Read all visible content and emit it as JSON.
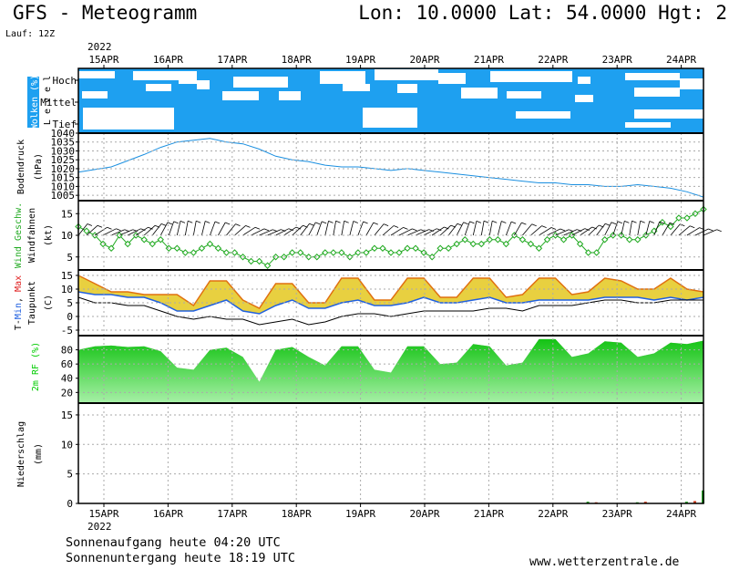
{
  "header": {
    "title": "GFS - Meteogramm",
    "lon_label": "Lon:",
    "lon": "10.0000",
    "lat_label": "Lat:",
    "lat": "54.0000",
    "hgt_label": "Hgt:",
    "hgt": "2",
    "run": "Lauf: 12Z"
  },
  "footer": {
    "sunrise": "Sonnenaufgang heute 04:20 UTC",
    "sunset": "Sonnenuntergang heute 18:19 UTC",
    "credit": "www.wetterzentrale.de"
  },
  "colors": {
    "cloud": "#1ea0f0",
    "pressure": "#1a8fe0",
    "wind": "#22aa22",
    "temp_max": "#e02020",
    "temp_min": "#2060e0",
    "rh": "#00cc00",
    "grid": "#aaaaaa"
  },
  "chart_data": {
    "type": "meteogram",
    "year": "2022",
    "x_start": "2022-04-15T00:00",
    "x_end": "2022-04-24T12:00",
    "date_ticks": [
      "15APR",
      "16APR",
      "17APR",
      "18APR",
      "19APR",
      "20APR",
      "21APR",
      "22APR",
      "23APR",
      "24APR"
    ],
    "panels": [
      {
        "id": "clouds",
        "type": "heatmap",
        "ylabel": "Wolken (%)",
        "ylabel_side": "L e v e l",
        "levels": [
          "Hoch",
          "Mittel",
          "Tief"
        ]
      },
      {
        "id": "pressure",
        "type": "line",
        "ylabel": "Bodendruck",
        "unit": "(hPa)",
        "ylim": [
          1002,
          1040
        ],
        "yticks": [
          1005,
          1010,
          1015,
          1020,
          1025,
          1030,
          1035,
          1040
        ],
        "series": [
          {
            "x": [
              0,
              12,
              24,
              30,
              36,
              42,
              48,
              54,
              60,
              66,
              72,
              78,
              84,
              90,
              96,
              102,
              108,
              114,
              120,
              126,
              132,
              138,
              144,
              150,
              156,
              162,
              168,
              174,
              180,
              186,
              192,
              198,
              204,
              210,
              216,
              222,
              228
            ],
            "values": [
              1018,
              1021,
              1028,
              1032,
              1035,
              1036,
              1037,
              1035,
              1034,
              1031,
              1027,
              1025,
              1024,
              1022,
              1021,
              1021,
              1020,
              1019,
              1020,
              1019,
              1018,
              1017,
              1016,
              1015,
              1014,
              1013,
              1012,
              1012,
              1011,
              1011,
              1010,
              1010,
              1011,
              1010,
              1009,
              1007,
              1004
            ]
          }
        ]
      },
      {
        "id": "wind",
        "type": "line",
        "ylabel": "Wind Geschw.",
        "ylabel2": "Windfahnen",
        "unit": "(kt)",
        "ylim": [
          2,
          18
        ],
        "yticks": [
          5,
          10,
          15
        ],
        "series": [
          {
            "name": "Wind Geschw.",
            "x": [
              0,
              3,
              6,
              9,
              12,
              15,
              18,
              21,
              24,
              27,
              30,
              33,
              36,
              39,
              42,
              45,
              48,
              51,
              54,
              57,
              60,
              63,
              66,
              69,
              72,
              75,
              78,
              81,
              84,
              87,
              90,
              93,
              96,
              99,
              102,
              105,
              108,
              111,
              114,
              117,
              120,
              123,
              126,
              129,
              132,
              135,
              138,
              141,
              144,
              147,
              150,
              153,
              156,
              159,
              162,
              165,
              168,
              171,
              174,
              177,
              180,
              183,
              186,
              189,
              192,
              195,
              198,
              201,
              204,
              207,
              210,
              213,
              216,
              219,
              222,
              225,
              228
            ],
            "values": [
              12,
              11,
              10,
              8,
              7,
              10,
              8,
              10,
              9,
              8,
              9,
              7,
              7,
              6,
              6,
              7,
              8,
              7,
              6,
              6,
              5,
              4,
              4,
              3,
              5,
              5,
              6,
              6,
              5,
              5,
              6,
              6,
              6,
              5,
              6,
              6,
              7,
              7,
              6,
              6,
              7,
              7,
              6,
              5,
              7,
              7,
              8,
              9,
              8,
              8,
              9,
              9,
              8,
              10,
              9,
              8,
              7,
              9,
              10,
              9,
              10,
              8,
              6,
              6,
              9,
              10,
              10,
              9,
              9,
              10,
              11,
              13,
              12,
              14,
              14,
              15,
              16
            ]
          }
        ]
      },
      {
        "id": "temperature",
        "type": "area",
        "ylabel": "T-Min, Max",
        "ylabel2": "Taupunkt",
        "unit": "(C)",
        "ylim": [
          -7,
          17
        ],
        "yticks": [
          -5,
          0,
          5,
          10,
          15
        ],
        "series": [
          {
            "name": "Max",
            "x": [
              0,
              6,
              12,
              18,
              24,
              30,
              36,
              42,
              48,
              54,
              60,
              66,
              72,
              78,
              84,
              90,
              96,
              102,
              108,
              114,
              120,
              126,
              132,
              138,
              144,
              150,
              156,
              162,
              168,
              174,
              180,
              186,
              192,
              198,
              204,
              210,
              216,
              222,
              228
            ],
            "values": [
              15,
              12,
              9,
              9,
              8,
              8,
              8,
              4,
              13,
              13,
              6,
              3,
              12,
              12,
              5,
              5,
              14,
              14,
              6,
              6,
              14,
              14,
              7,
              7,
              14,
              14,
              7,
              8,
              14,
              14,
              8,
              9,
              14,
              13,
              10,
              10,
              14,
              10,
              9
            ]
          },
          {
            "name": "Min",
            "x": [
              0,
              6,
              12,
              18,
              24,
              30,
              36,
              42,
              48,
              54,
              60,
              66,
              72,
              78,
              84,
              90,
              96,
              102,
              108,
              114,
              120,
              126,
              132,
              138,
              144,
              150,
              156,
              162,
              168,
              174,
              180,
              186,
              192,
              198,
              204,
              210,
              216,
              222,
              228
            ],
            "values": [
              9,
              8,
              8,
              7,
              7,
              5,
              2,
              2,
              4,
              6,
              2,
              1,
              4,
              6,
              3,
              3,
              5,
              6,
              4,
              4,
              5,
              7,
              5,
              5,
              6,
              7,
              5,
              5,
              6,
              6,
              6,
              6,
              7,
              7,
              7,
              6,
              7,
              6,
              7
            ]
          },
          {
            "name": "Taupunkt",
            "x": [
              0,
              6,
              12,
              18,
              24,
              30,
              36,
              42,
              48,
              54,
              60,
              66,
              72,
              78,
              84,
              90,
              96,
              102,
              108,
              114,
              120,
              126,
              132,
              138,
              144,
              150,
              156,
              162,
              168,
              174,
              180,
              186,
              192,
              198,
              204,
              210,
              216,
              222,
              228
            ],
            "values": [
              7,
              5,
              5,
              4,
              4,
              2,
              0,
              -1,
              0,
              -1,
              -1,
              -3,
              -2,
              -1,
              -3,
              -2,
              0,
              1,
              1,
              0,
              1,
              2,
              2,
              2,
              2,
              3,
              3,
              2,
              4,
              4,
              4,
              5,
              6,
              6,
              5,
              5,
              6,
              6,
              6
            ]
          }
        ]
      },
      {
        "id": "rh",
        "type": "area",
        "ylabel": "2m RF (%)",
        "ylim": [
          5,
          100
        ],
        "yticks": [
          20,
          40,
          60,
          80
        ],
        "series": [
          {
            "name": "2m RF",
            "x": [
              0,
              6,
              12,
              18,
              24,
              30,
              36,
              42,
              48,
              54,
              60,
              66,
              72,
              78,
              84,
              90,
              96,
              102,
              108,
              114,
              120,
              126,
              132,
              138,
              144,
              150,
              156,
              162,
              168,
              174,
              180,
              186,
              192,
              198,
              204,
              210,
              216,
              222,
              228
            ],
            "values": [
              80,
              85,
              86,
              84,
              85,
              78,
              55,
              52,
              80,
              83,
              70,
              35,
              80,
              84,
              70,
              58,
              85,
              85,
              52,
              48,
              85,
              85,
              60,
              62,
              88,
              85,
              58,
              62,
              95,
              95,
              70,
              75,
              92,
              90,
              70,
              75,
              90,
              88,
              93
            ]
          }
        ]
      },
      {
        "id": "precip",
        "type": "bar",
        "ylabel": "Niederschlag",
        "unit": "(mm)",
        "ylim": [
          0,
          17
        ],
        "yticks": [
          0,
          5,
          10,
          15
        ],
        "series": [
          {
            "name": "Niederschlag",
            "x": [
              186,
              189,
              204,
              207,
              222,
              225,
              228
            ],
            "values": [
              0.3,
              0.2,
              0.2,
              0.3,
              0.3,
              0.4,
              2.2
            ]
          }
        ]
      }
    ]
  }
}
